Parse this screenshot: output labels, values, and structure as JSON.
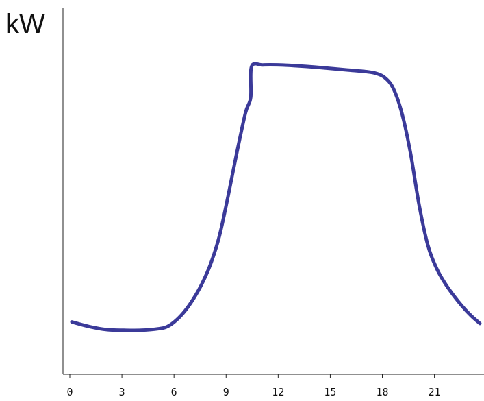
{
  "chart_data": {
    "type": "line",
    "title": "",
    "xlabel": "",
    "ylabel": "kW",
    "xlim": [
      0,
      23.5
    ],
    "ylim": [
      0,
      100
    ],
    "xticks": [
      0,
      3,
      6,
      9,
      12,
      15,
      18,
      21
    ],
    "grid": false,
    "legend": "none",
    "colors": {
      "line": "#3b3a99",
      "axis": "#222222",
      "text": "#111111"
    },
    "series": [
      {
        "x": [
          0,
          1,
          2,
          3,
          4,
          5,
          5.5,
          6,
          6.5,
          7,
          7.5,
          8,
          8.5,
          9,
          9.5,
          10,
          10.3,
          10.35,
          11,
          12,
          13,
          14,
          15,
          16,
          17,
          17.5,
          18,
          18.5,
          19,
          19.5,
          20,
          20.5,
          21,
          21.5,
          22,
          22.5,
          23,
          23.5
        ],
        "y": [
          17,
          15.5,
          14.5,
          14.3,
          14.3,
          14.8,
          15.5,
          17.5,
          20.5,
          24.5,
          29.5,
          36,
          45,
          58,
          72,
          85,
          90,
          100,
          100.5,
          100.5,
          100.2,
          99.8,
          99.3,
          98.8,
          98.3,
          97.8,
          96.5,
          93,
          85,
          72,
          55,
          42,
          34.5,
          29.5,
          25.5,
          22,
          19,
          16.5
        ]
      }
    ]
  }
}
